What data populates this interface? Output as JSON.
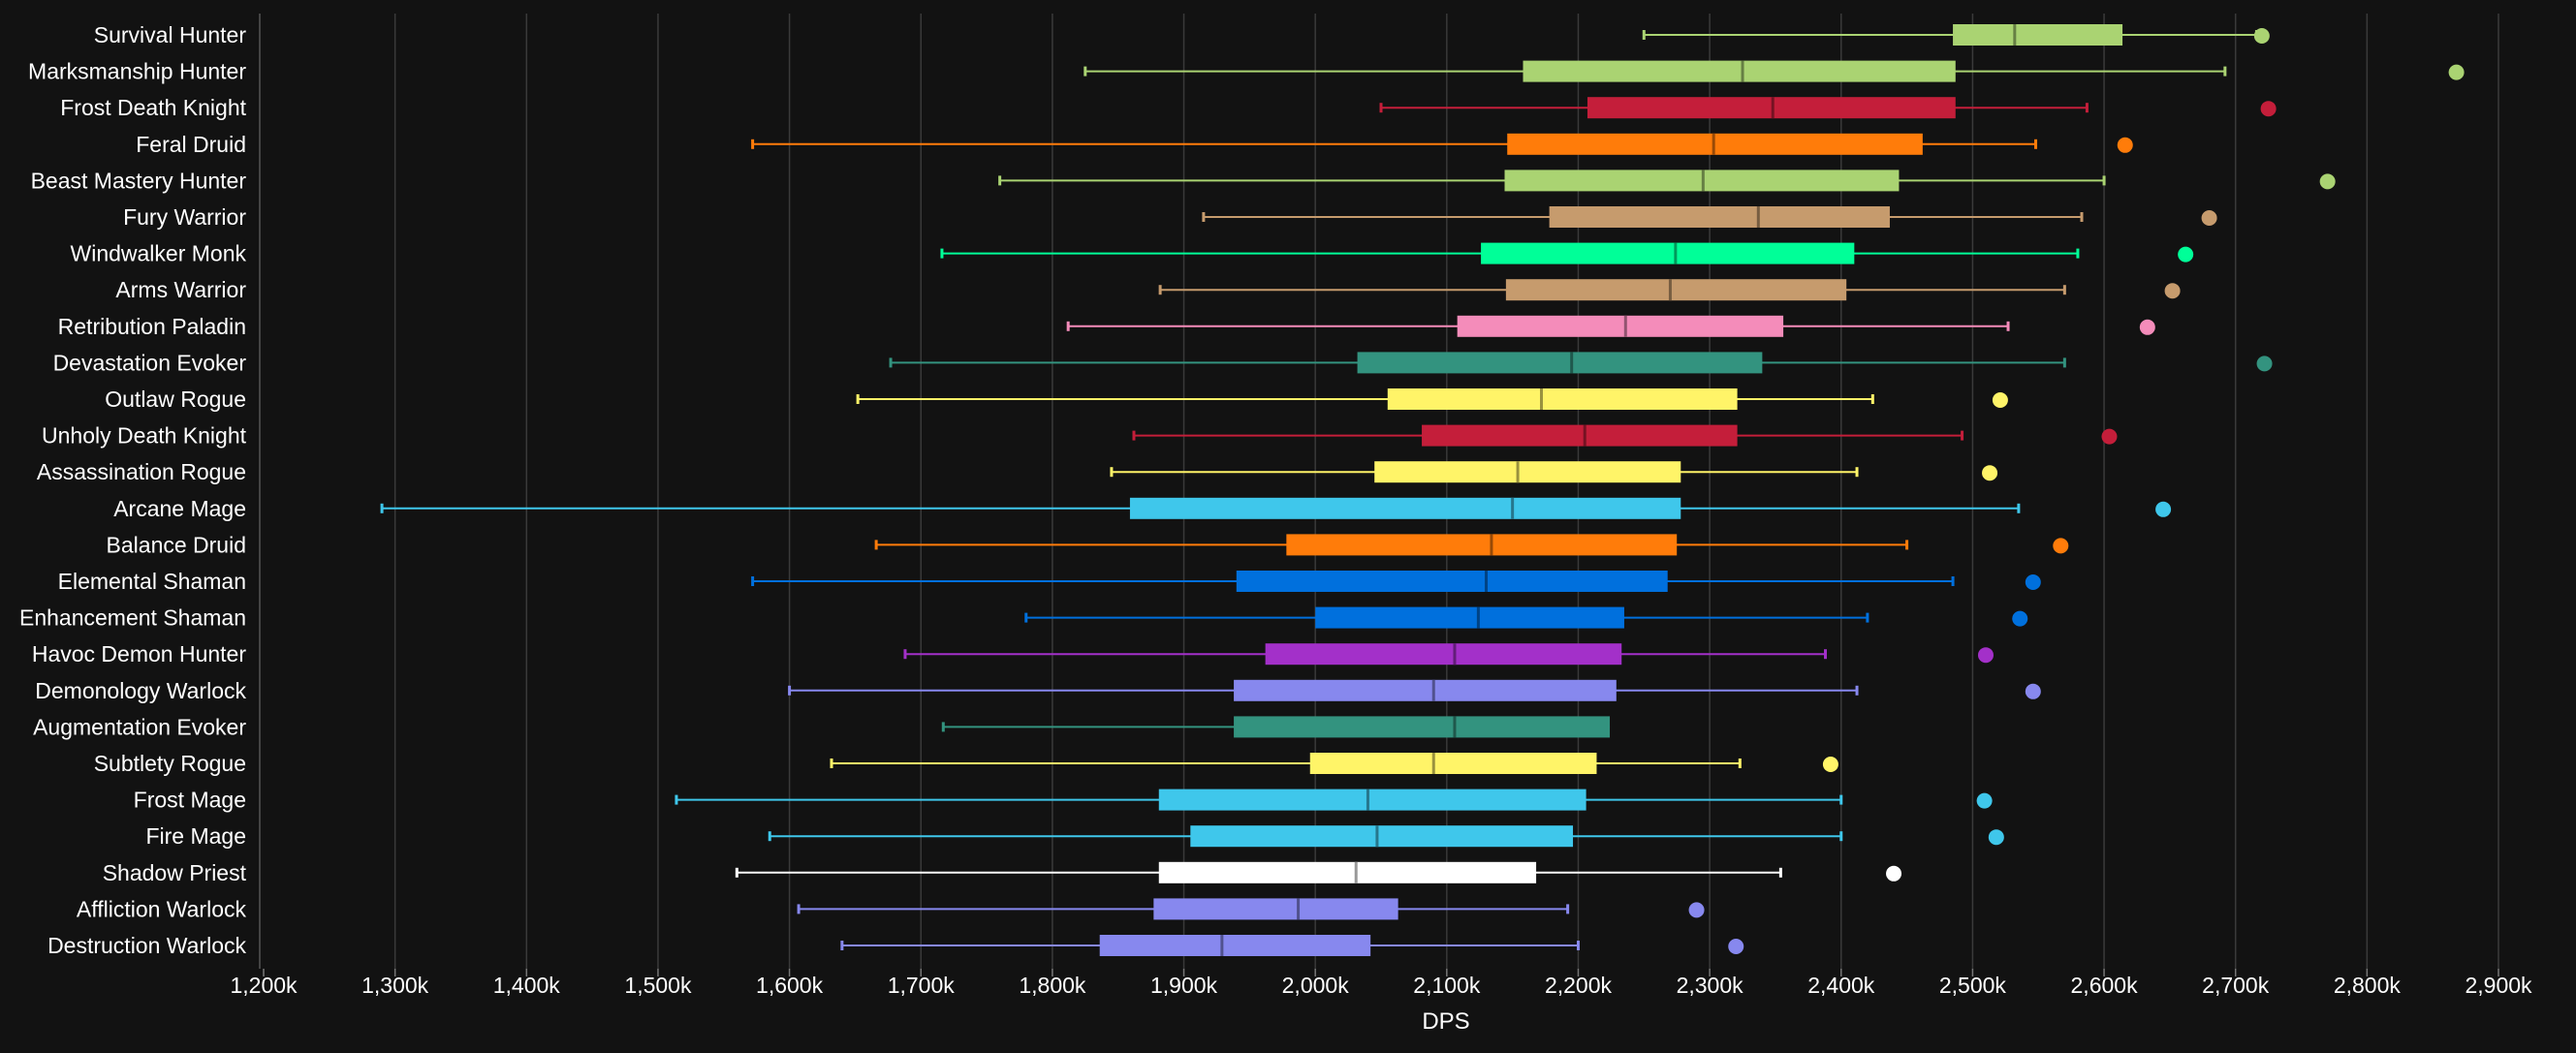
{
  "chart_data": {
    "type": "boxplot",
    "title": "",
    "xlabel": "DPS",
    "ylabel": "",
    "xlim": [
      1200,
      2900
    ],
    "x_ticks": [
      1200,
      1300,
      1400,
      1500,
      1600,
      1700,
      1800,
      1900,
      2000,
      2100,
      2200,
      2300,
      2400,
      2500,
      2600,
      2700,
      2800,
      2900
    ],
    "x_tick_labels": [
      "1,200k",
      "1,300k",
      "1,400k",
      "1,500k",
      "1,600k",
      "1,700k",
      "1,800k",
      "1,900k",
      "2,000k",
      "2,100k",
      "2,200k",
      "2,300k",
      "2,400k",
      "2,500k",
      "2,600k",
      "2,700k",
      "2,800k",
      "2,900k"
    ],
    "grid": true,
    "unit": "k",
    "series": [
      {
        "name": "Survival Hunter",
        "color": "#aad372",
        "min": 2250,
        "q1": 2485,
        "median": 2532,
        "q3": 2614,
        "max": 2716,
        "outlier": 2720
      },
      {
        "name": "Marksmanship Hunter",
        "color": "#aad372",
        "min": 1825,
        "q1": 2158,
        "median": 2325,
        "q3": 2487,
        "max": 2692,
        "outlier": 2868
      },
      {
        "name": "Frost Death Knight",
        "color": "#c41e3a",
        "min": 2050,
        "q1": 2207,
        "median": 2348,
        "q3": 2487,
        "max": 2587,
        "outlier": 2725
      },
      {
        "name": "Feral Druid",
        "color": "#ff7c0a",
        "min": 1572,
        "q1": 2146,
        "median": 2303,
        "q3": 2462,
        "max": 2548,
        "outlier": 2616
      },
      {
        "name": "Beast Mastery Hunter",
        "color": "#aad372",
        "min": 1760,
        "q1": 2144,
        "median": 2295,
        "q3": 2444,
        "max": 2600,
        "outlier": 2770
      },
      {
        "name": "Fury Warrior",
        "color": "#c69b6d",
        "min": 1915,
        "q1": 2178,
        "median": 2337,
        "q3": 2437,
        "max": 2583,
        "outlier": 2680
      },
      {
        "name": "Windwalker Monk",
        "color": "#00ff98",
        "min": 1716,
        "q1": 2126,
        "median": 2274,
        "q3": 2410,
        "max": 2580,
        "outlier": 2662
      },
      {
        "name": "Arms Warrior",
        "color": "#c69b6d",
        "min": 1882,
        "q1": 2145,
        "median": 2270,
        "q3": 2404,
        "max": 2570,
        "outlier": 2652
      },
      {
        "name": "Retribution Paladin",
        "color": "#f48cba",
        "min": 1812,
        "q1": 2108,
        "median": 2236,
        "q3": 2356,
        "max": 2527,
        "outlier": 2633
      },
      {
        "name": "Devastation Evoker",
        "color": "#33937f",
        "min": 1677,
        "q1": 2032,
        "median": 2195,
        "q3": 2340,
        "max": 2570,
        "outlier": 2722
      },
      {
        "name": "Outlaw Rogue",
        "color": "#fff468",
        "min": 1652,
        "q1": 2055,
        "median": 2172,
        "q3": 2321,
        "max": 2424,
        "outlier": 2521
      },
      {
        "name": "Unholy Death Knight",
        "color": "#c41e3a",
        "min": 1862,
        "q1": 2081,
        "median": 2205,
        "q3": 2321,
        "max": 2492,
        "outlier": 2604
      },
      {
        "name": "Assassination Rogue",
        "color": "#fff468",
        "min": 1845,
        "q1": 2045,
        "median": 2154,
        "q3": 2278,
        "max": 2412,
        "outlier": 2513
      },
      {
        "name": "Arcane Mage",
        "color": "#3fc7eb",
        "min": 1290,
        "q1": 1859,
        "median": 2150,
        "q3": 2278,
        "max": 2535,
        "outlier": 2645
      },
      {
        "name": "Balance Druid",
        "color": "#ff7c0a",
        "min": 1666,
        "q1": 1978,
        "median": 2134,
        "q3": 2275,
        "max": 2450,
        "outlier": 2567
      },
      {
        "name": "Elemental Shaman",
        "color": "#0070dd",
        "min": 1572,
        "q1": 1940,
        "median": 2130,
        "q3": 2268,
        "max": 2485,
        "outlier": 2546
      },
      {
        "name": "Enhancement Shaman",
        "color": "#0070dd",
        "min": 1780,
        "q1": 2000,
        "median": 2124,
        "q3": 2235,
        "max": 2420,
        "outlier": 2536
      },
      {
        "name": "Havoc Demon Hunter",
        "color": "#a330c9",
        "min": 1688,
        "q1": 1962,
        "median": 2106,
        "q3": 2233,
        "max": 2388,
        "outlier": 2510
      },
      {
        "name": "Demonology Warlock",
        "color": "#8788ee",
        "min": 1600,
        "q1": 1938,
        "median": 2090,
        "q3": 2229,
        "max": 2412,
        "outlier": 2546
      },
      {
        "name": "Augmentation Evoker",
        "color": "#33937f",
        "min": 1717,
        "q1": 1938,
        "median": 2106,
        "q3": 2224,
        "max": null,
        "outlier": null
      },
      {
        "name": "Subtlety Rogue",
        "color": "#fff468",
        "min": 1632,
        "q1": 1996,
        "median": 2090,
        "q3": 2214,
        "max": 2323,
        "outlier": 2392
      },
      {
        "name": "Frost Mage",
        "color": "#3fc7eb",
        "min": 1514,
        "q1": 1881,
        "median": 2040,
        "q3": 2206,
        "max": 2400,
        "outlier": 2509
      },
      {
        "name": "Fire Mage",
        "color": "#3fc7eb",
        "min": 1585,
        "q1": 1905,
        "median": 2047,
        "q3": 2196,
        "max": 2400,
        "outlier": 2518
      },
      {
        "name": "Shadow Priest",
        "color": "#ffffff",
        "min": 1560,
        "q1": 1881,
        "median": 2031,
        "q3": 2168,
        "max": 2354,
        "outlier": 2440
      },
      {
        "name": "Affliction Warlock",
        "color": "#8788ee",
        "min": 1607,
        "q1": 1877,
        "median": 1987,
        "q3": 2063,
        "max": 2192,
        "outlier": 2290
      },
      {
        "name": "Destruction Warlock",
        "color": "#8788ee",
        "min": 1640,
        "q1": 1836,
        "median": 1929,
        "q3": 2042,
        "max": 2200,
        "outlier": 2320
      }
    ]
  }
}
